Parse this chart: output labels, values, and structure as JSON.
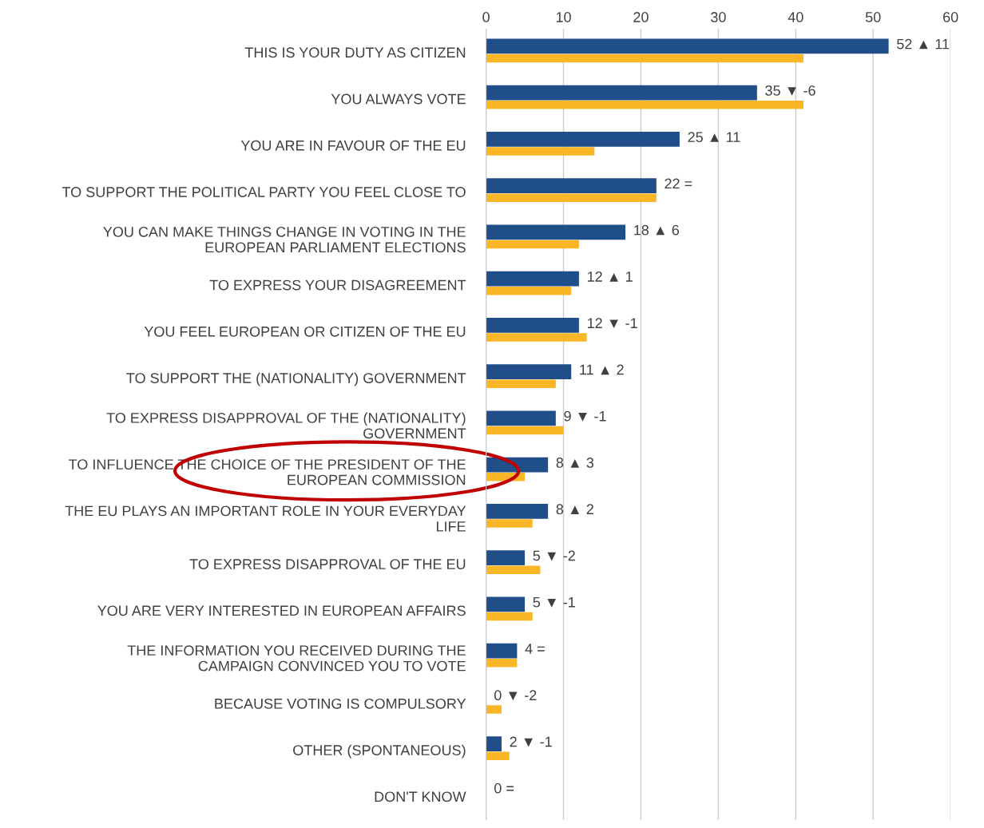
{
  "chart_data": {
    "type": "bar",
    "orientation": "horizontal",
    "categories": [
      "THIS IS YOUR DUTY AS CITIZEN",
      "YOU ALWAYS VOTE",
      "YOU ARE IN FAVOUR OF THE EU",
      "TO SUPPORT THE POLITICAL PARTY YOU FEEL CLOSE TO",
      "YOU CAN MAKE THINGS CHANGE IN VOTING IN THE\nEUROPEAN PARLIAMENT ELECTIONS",
      "TO EXPRESS YOUR DISAGREEMENT",
      "YOU FEEL EUROPEAN OR CITIZEN OF THE EU",
      "TO SUPPORT THE (NATIONALITY) GOVERNMENT",
      "TO EXPRESS DISAPPROVAL OF THE (NATIONALITY)\nGOVERNMENT",
      "TO INFLUENCE THE CHOICE OF THE PRESIDENT OF THE\nEUROPEAN COMMISSION",
      "THE EU PLAYS AN IMPORTANT ROLE IN YOUR EVERYDAY\nLIFE",
      "TO EXPRESS DISAPPROVAL OF THE EU",
      "YOU ARE VERY INTERESTED IN EUROPEAN AFFAIRS",
      "THE INFORMATION YOU RECEIVED DURING THE\nCAMPAIGN CONVINCED YOU TO VOTE",
      "BECAUSE VOTING IS COMPULSORY",
      "OTHER (SPONTANEOUS)",
      "DON'T KNOW"
    ],
    "series": [
      {
        "color": "#1f4e89",
        "values": [
          52,
          35,
          25,
          22,
          18,
          12,
          12,
          11,
          9,
          8,
          8,
          5,
          5,
          4,
          0,
          2,
          0
        ],
        "value_labels": [
          "52 ▲ 11",
          "35 ▼ -6",
          "25 ▲ 11",
          "22 =",
          "18 ▲ 6",
          "12 ▲ 1",
          "12 ▼ -1",
          "11 ▲ 2",
          "9 ▼ -1",
          "8 ▲ 3",
          "8 ▲ 2",
          "5 ▼ -2",
          "5 ▼ -1",
          "4 =",
          "0 ▼ -2",
          "2 ▼ -1",
          "0 ="
        ]
      },
      {
        "color": "#f9b728",
        "values": [
          41,
          41,
          14,
          22,
          12,
          11,
          13,
          9,
          10,
          5,
          6,
          7,
          6,
          4,
          2,
          3,
          0
        ]
      }
    ],
    "xlim": [
      0,
      60
    ],
    "xticks": [
      0,
      10,
      20,
      30,
      40,
      50,
      60
    ],
    "grid": "x",
    "legend": false
  }
}
